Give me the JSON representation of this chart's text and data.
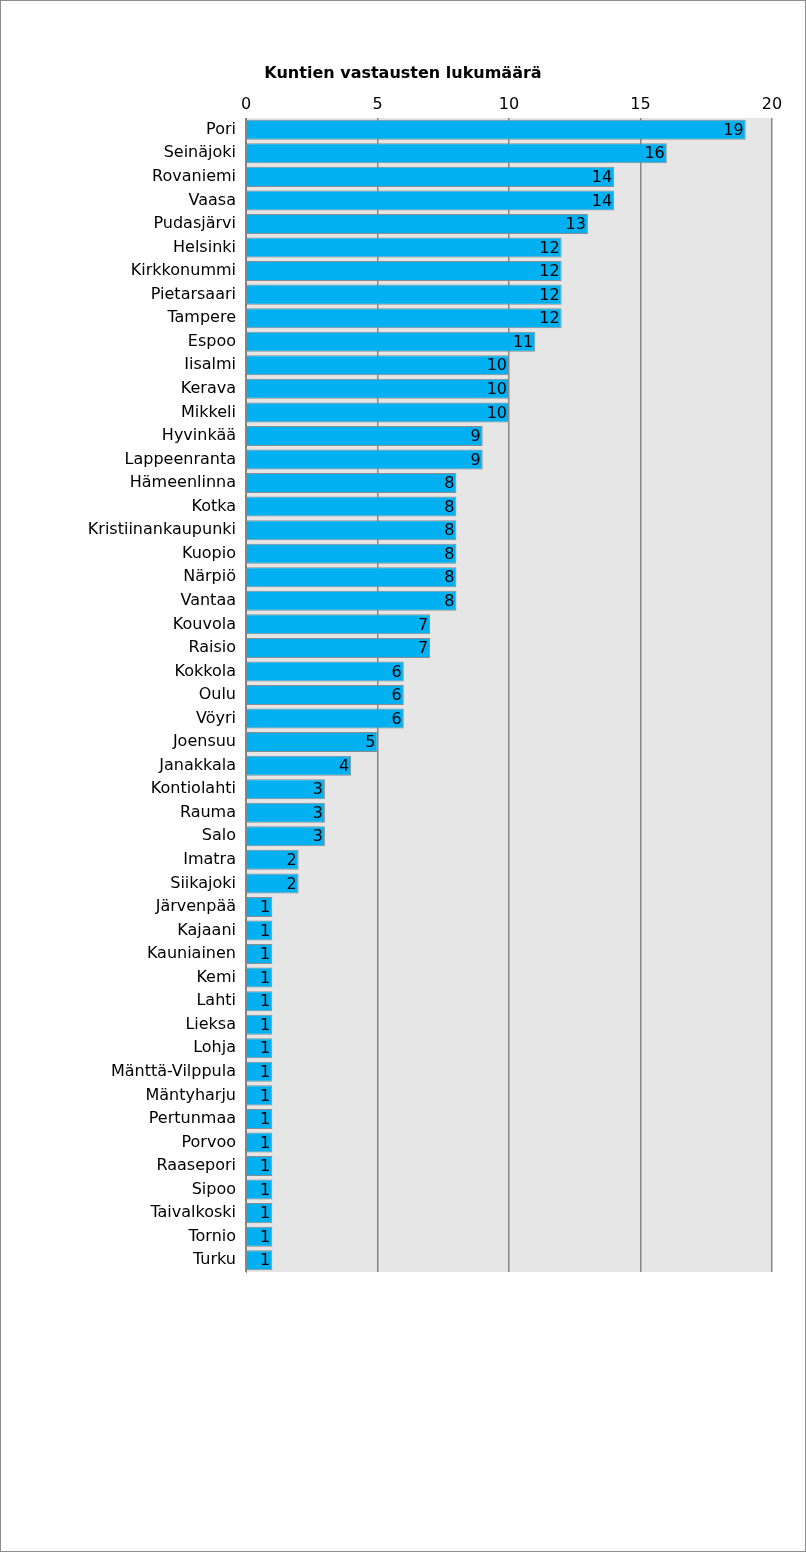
{
  "chart_data": {
    "type": "bar",
    "orientation": "horizontal",
    "title": "Kuntien vastausten lukumäärä",
    "categories": [
      "Pori",
      "Seinäjoki",
      "Rovaniemi",
      "Vaasa",
      "Pudasjärvi",
      "Helsinki",
      "Kirkkonummi",
      "Pietarsaari",
      "Tampere",
      "Espoo",
      "Iisalmi",
      "Kerava",
      "Mikkeli",
      "Hyvinkää",
      "Lappeenranta",
      "Hämeenlinna",
      "Kotka",
      "Kristiinankaupunki",
      "Kuopio",
      "Närpiö",
      "Vantaa",
      "Kouvola",
      "Raisio",
      "Kokkola",
      "Oulu",
      "Vöyri",
      "Joensuu",
      "Janakkala",
      "Kontiolahti",
      "Rauma",
      "Salo",
      "Imatra",
      "Siikajoki",
      "Järvenpää",
      "Kajaani",
      "Kauniainen",
      "Kemi",
      "Lahti",
      "Lieksa",
      "Lohja",
      "Mänttä-Vilppula",
      "Mäntyharju",
      "Pertunmaa",
      "Porvoo",
      "Raasepori",
      "Sipoo",
      "Taivalkoski",
      "Tornio",
      "Turku"
    ],
    "values": [
      19,
      16,
      14,
      14,
      13,
      12,
      12,
      12,
      12,
      11,
      10,
      10,
      10,
      9,
      9,
      8,
      8,
      8,
      8,
      8,
      8,
      7,
      7,
      6,
      6,
      6,
      5,
      4,
      3,
      3,
      3,
      2,
      2,
      1,
      1,
      1,
      1,
      1,
      1,
      1,
      1,
      1,
      1,
      1,
      1,
      1,
      1,
      1,
      1
    ],
    "color": "#00b0f0",
    "xlim": [
      0,
      20
    ],
    "xticks": [
      0,
      5,
      10,
      15,
      20
    ],
    "grid": "x",
    "data_labels": true
  }
}
